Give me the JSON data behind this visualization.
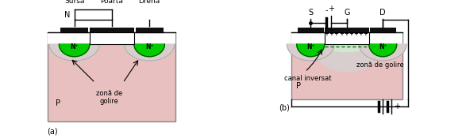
{
  "colors": {
    "p_substrate": "#e8c0c0",
    "p_substrate_edge": "#888888",
    "n_plus": "#00cc00",
    "n_plus_edge": "#005500",
    "depletion": "#d8cece",
    "depletion_edge": "#aaaaaa",
    "oxide": "#ffffff",
    "oxide_edge": "#000000",
    "metal": "#111111",
    "wire": "#000000",
    "inversion": "#d0e8d0",
    "dashed_channel": "#007700",
    "background": "#ffffff"
  },
  "labels": {
    "sursa": "Sursă",
    "poarta": "Poartă",
    "drena": "Drenă",
    "N": "N",
    "P_a": "P",
    "P_b": "P",
    "n_plus": "N⁺",
    "zona_de_golire_a": "zonă de\ngolire",
    "zona_de_golire_b": "zonă de golire",
    "canal_inversat": "canal inversat",
    "a": "(a)",
    "b": "(b)",
    "S": "S",
    "G": "G",
    "D": "D",
    "minus_top": "-",
    "plus_top": "+",
    "minus_bot": "-",
    "plus_bot": "+"
  }
}
